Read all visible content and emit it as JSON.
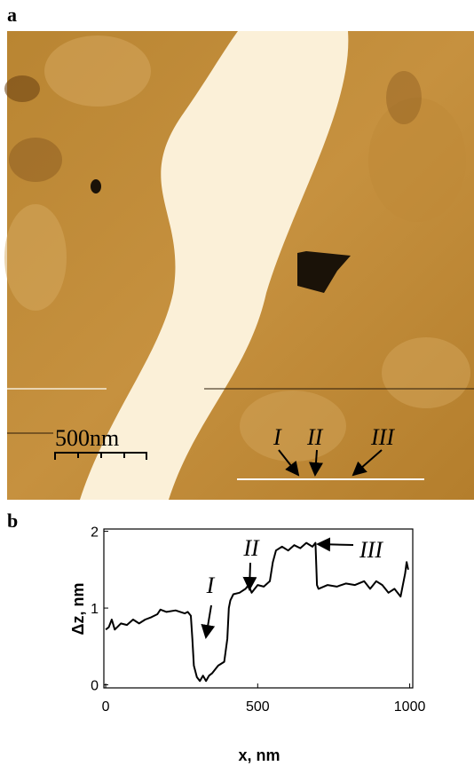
{
  "panel_labels": [
    "a",
    "b"
  ],
  "image": {
    "scale_bar": "500nm",
    "markers": [
      "I",
      "II",
      "III"
    ]
  },
  "chart_data": {
    "type": "line",
    "xlabel": "x, nm",
    "ylabel": "Δz, nm",
    "x": [
      0,
      10,
      20,
      30,
      50,
      70,
      90,
      110,
      130,
      150,
      170,
      180,
      200,
      230,
      260,
      270,
      280,
      285,
      290,
      300,
      310,
      320,
      330,
      340,
      350,
      370,
      390,
      400,
      405,
      410,
      420,
      440,
      460,
      470,
      480,
      500,
      520,
      540,
      550,
      560,
      580,
      600,
      620,
      640,
      660,
      680,
      690,
      695,
      700,
      730,
      760,
      790,
      820,
      850,
      870,
      890,
      910,
      930,
      950,
      970,
      985,
      990,
      995
    ],
    "series": [
      {
        "color": "#000000",
        "values": [
          0.72,
          0.75,
          0.85,
          0.72,
          0.8,
          0.78,
          0.85,
          0.8,
          0.85,
          0.88,
          0.92,
          0.98,
          0.95,
          0.97,
          0.93,
          0.95,
          0.9,
          0.6,
          0.25,
          0.1,
          0.05,
          0.12,
          0.05,
          0.12,
          0.15,
          0.25,
          0.3,
          0.6,
          1.0,
          1.1,
          1.18,
          1.2,
          1.25,
          1.3,
          1.2,
          1.3,
          1.28,
          1.35,
          1.6,
          1.75,
          1.8,
          1.75,
          1.82,
          1.78,
          1.85,
          1.8,
          1.85,
          1.3,
          1.25,
          1.3,
          1.28,
          1.32,
          1.3,
          1.35,
          1.25,
          1.35,
          1.3,
          1.2,
          1.25,
          1.15,
          1.45,
          1.6,
          1.5
        ]
      }
    ],
    "xlim": [
      -6,
      1010
    ],
    "ylim": [
      -0.04,
      2.03
    ],
    "xticks": [
      0,
      500,
      1000
    ],
    "yticks": [
      0,
      1,
      2
    ],
    "annotations": [
      "I",
      "II",
      "III"
    ]
  }
}
